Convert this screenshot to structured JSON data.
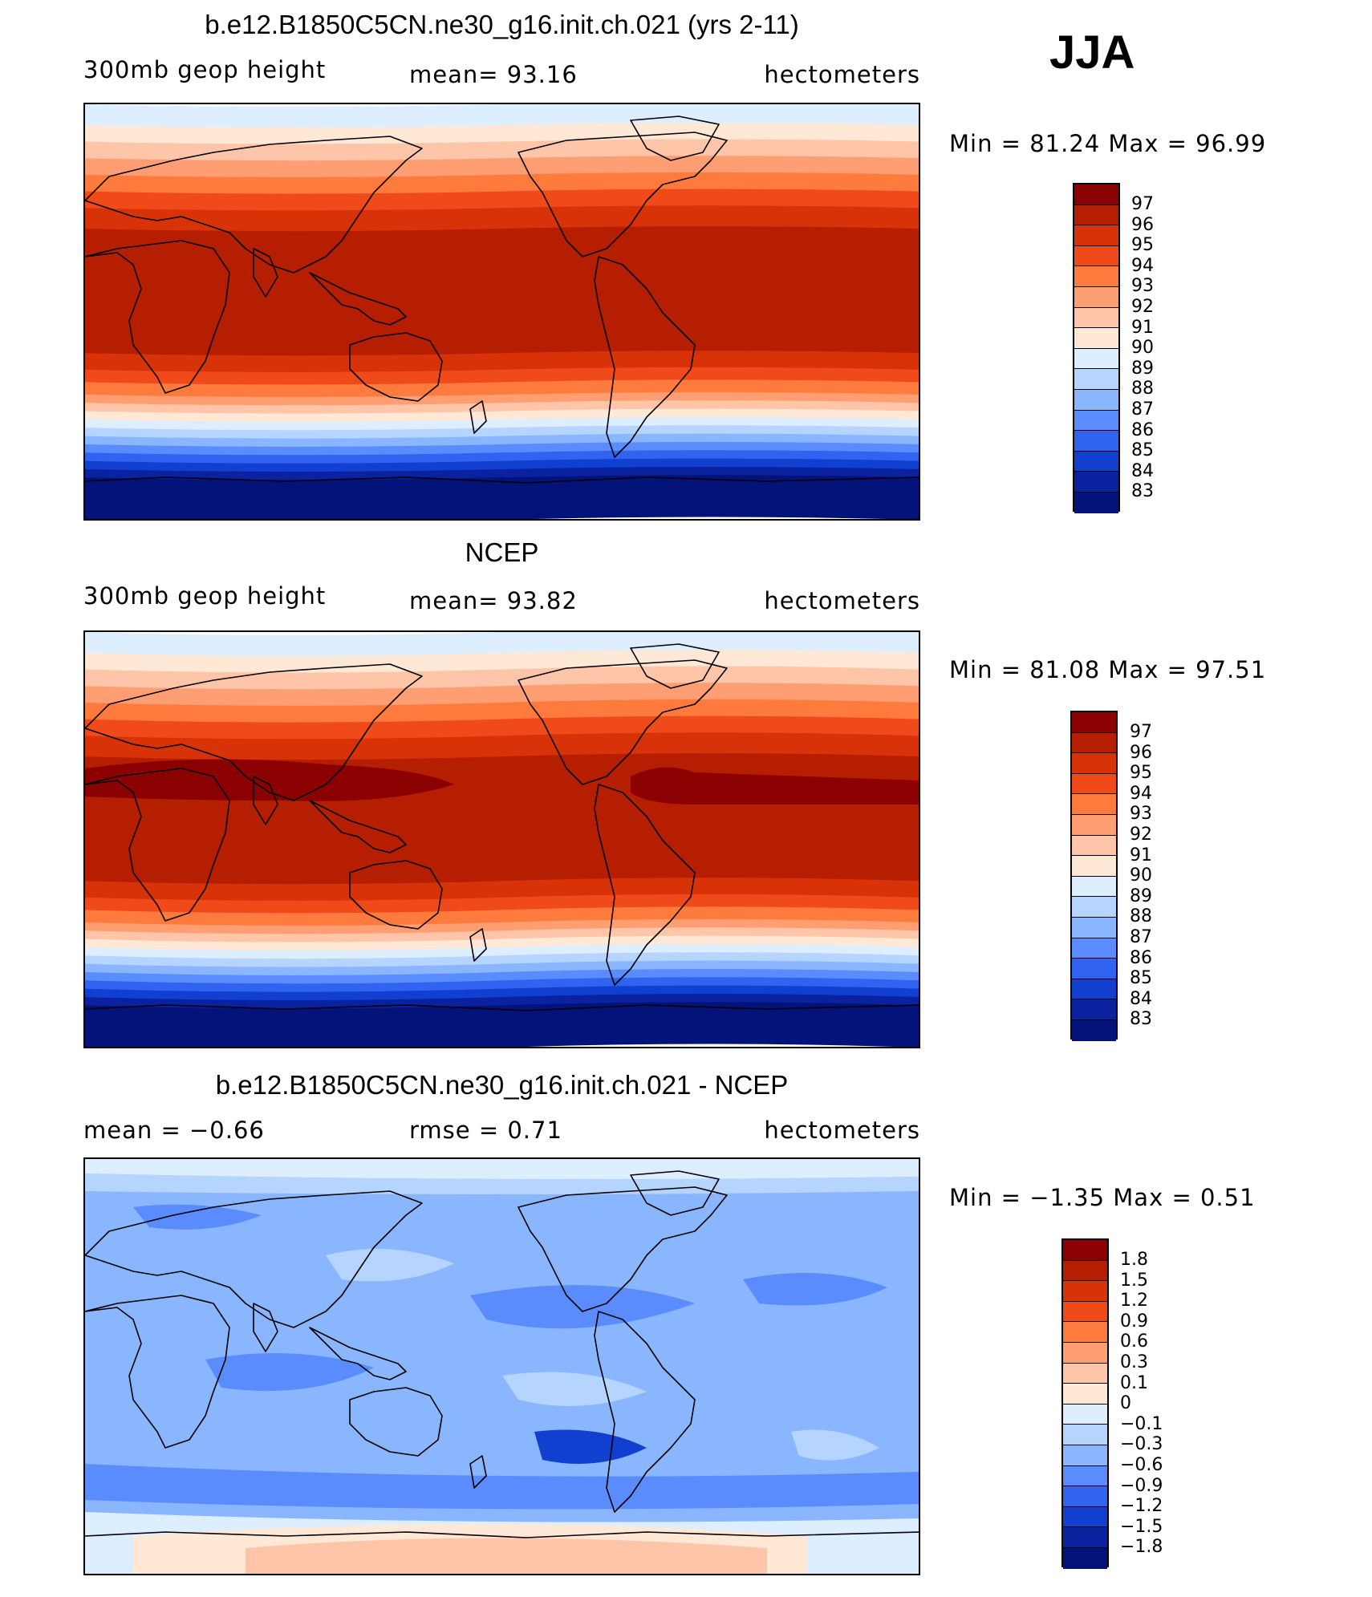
{
  "season": "JJA",
  "panels": [
    {
      "title": "b.e12.B1850C5CN.ne30_g16.init.ch.021 (yrs 2-11)",
      "left": "300mb geop height",
      "center": "mean=  93.16",
      "right": "hectometers",
      "minmax": "Min =   81.24 Max =   96.99",
      "kind": "model"
    },
    {
      "title": "NCEP",
      "left": "300mb geop height",
      "center": "mean=  93.82",
      "right": "hectometers",
      "minmax": "Min =   81.08 Max =   97.51",
      "kind": "obs"
    },
    {
      "title": "b.e12.B1850C5CN.ne30_g16.init.ch.021 - NCEP",
      "left": "mean =   −0.66",
      "center": "rmse =    0.71",
      "right": "hectometers",
      "minmax": "Min =   −1.35 Max =    0.51",
      "kind": "diff"
    }
  ],
  "legend_height": {
    "labels": [
      "97",
      "96",
      "95",
      "94",
      "93",
      "92",
      "91",
      "90",
      "89",
      "88",
      "87",
      "86",
      "85",
      "84",
      "83"
    ],
    "colors": [
      "#8b0000",
      "#b51e00",
      "#d83208",
      "#f04a1a",
      "#ff7a3d",
      "#ff9e73",
      "#ffc5a8",
      "#ffe8d6",
      "#dceeff",
      "#b5d4ff",
      "#8ab5ff",
      "#5a8cff",
      "#2f63f0",
      "#1140d0",
      "#0a22a0",
      "#03137a"
    ]
  },
  "legend_diff": {
    "labels": [
      "1.8",
      "1.5",
      "1.2",
      "0.9",
      "0.6",
      "0.3",
      "0.1",
      "0",
      "−0.1",
      "−0.3",
      "−0.6",
      "−0.9",
      "−1.2",
      "−1.5",
      "−1.8"
    ],
    "colors": [
      "#8b0000",
      "#b51e00",
      "#d83208",
      "#f04a1a",
      "#ff7a3d",
      "#ff9e73",
      "#ffc5a8",
      "#ffe8d6",
      "#dceeff",
      "#b5d4ff",
      "#8ab5ff",
      "#5a8cff",
      "#2f63f0",
      "#1140d0",
      "#0a22a0",
      "#03137a"
    ]
  }
}
